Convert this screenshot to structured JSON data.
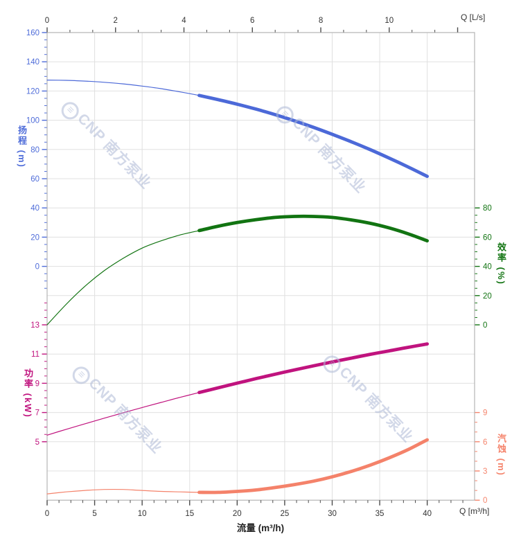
{
  "watermark": {
    "text": "CNP 南方泵业",
    "color": "#aebad6"
  },
  "chart_data": {
    "type": "line",
    "title": "",
    "x_bottom": {
      "axis_label": "流量 (m³/h)",
      "corner_label": "Q [m³/h]",
      "unit": "m³/h",
      "ticks": [
        0,
        5,
        10,
        15,
        20,
        25,
        30,
        35,
        40
      ],
      "minor_step": 1.25,
      "range": [
        0,
        45
      ],
      "grid": true
    },
    "x_top": {
      "corner_label": "Q [L/s]",
      "unit": "L/s",
      "ticks": [
        0,
        2,
        4,
        6,
        8,
        10
      ],
      "extra_unlabeled_ticks": [
        12
      ],
      "minor_step": 0.6666667,
      "range": [
        0,
        12.5
      ]
    },
    "y_axes": {
      "head": {
        "title": "扬程 (m)",
        "unit": "m",
        "side": "left",
        "color": "#4e6cd9",
        "ticks": [
          160,
          140,
          120,
          100,
          80,
          60,
          40,
          20,
          0
        ],
        "minor": {
          "from": -15,
          "to": 155,
          "step": 5
        },
        "range": [
          0,
          160
        ]
      },
      "efficiency": {
        "title": "效率 (%)",
        "unit": "%",
        "side": "right",
        "color": "#127412",
        "ticks": [
          80,
          60,
          40,
          20,
          0
        ],
        "minor": {
          "from": 0,
          "to": 80,
          "step": 5
        },
        "range": [
          0,
          80
        ]
      },
      "power": {
        "title": "功率 (kW)",
        "unit": "kW",
        "side": "left",
        "color": "#c0137e",
        "ticks": [
          13,
          11,
          9,
          7,
          5
        ],
        "minor": {
          "from": 5,
          "to": 14.5,
          "step": 0.5
        },
        "range": [
          5,
          13
        ]
      },
      "npsh": {
        "title": "汽蚀 (m)",
        "unit": "m",
        "side": "right",
        "color": "#f5846c",
        "ticks": [
          9,
          6,
          3,
          0
        ],
        "minor": {
          "from": 0,
          "to": 9,
          "step": 1
        },
        "range": [
          0,
          9
        ]
      }
    },
    "series": [
      {
        "id": "head",
        "label": "扬程",
        "axis": "head",
        "color": "#4c69d8",
        "bold_from_x": 16,
        "x": [
          0,
          2,
          4,
          6,
          8,
          10,
          12,
          14,
          16,
          18,
          20,
          22,
          24,
          26,
          28,
          30,
          32,
          34,
          36,
          38,
          40
        ],
        "values": [
          127.5,
          127.3,
          126.8,
          126.0,
          124.9,
          123.4,
          121.6,
          119.4,
          117.0,
          114.1,
          111.0,
          107.6,
          103.8,
          99.7,
          95.2,
          90.4,
          85.3,
          79.9,
          74.1,
          68.0,
          61.6
        ]
      },
      {
        "id": "efficiency",
        "label": "效率",
        "axis": "efficiency",
        "color": "#127412",
        "bold_from_x": 16,
        "x": [
          0,
          2,
          4,
          6,
          8,
          10,
          12,
          14,
          16,
          18,
          20,
          22,
          24,
          26,
          28,
          30,
          32,
          34,
          36,
          38,
          40
        ],
        "values": [
          0,
          14,
          26.5,
          37,
          45.5,
          52.5,
          57.5,
          61.5,
          64.5,
          67.5,
          70,
          72,
          73.5,
          74.2,
          74.2,
          73.5,
          71.8,
          69.5,
          66.3,
          62.3,
          57.5
        ]
      },
      {
        "id": "power",
        "label": "功率",
        "axis": "power",
        "color": "#c0137e",
        "bold_from_x": 16,
        "x": [
          0,
          2,
          4,
          6,
          8,
          10,
          12,
          14,
          16,
          18,
          20,
          22,
          24,
          26,
          28,
          30,
          32,
          34,
          36,
          38,
          40
        ],
        "values": [
          5.45,
          5.85,
          6.23,
          6.61,
          6.98,
          7.34,
          7.69,
          8.04,
          8.37,
          8.69,
          9.01,
          9.32,
          9.62,
          9.91,
          10.19,
          10.46,
          10.72,
          10.98,
          11.22,
          11.46,
          11.69
        ]
      },
      {
        "id": "npsh",
        "label": "汽蚀",
        "axis": "npsh",
        "color": "#f4826a",
        "bold_from_x": 16,
        "x": [
          0,
          2,
          4,
          6,
          8,
          10,
          12,
          14,
          16,
          18,
          20,
          22,
          24,
          26,
          28,
          30,
          32,
          34,
          36,
          38,
          40
        ],
        "values": [
          0.65,
          0.85,
          1.0,
          1.1,
          1.1,
          1.0,
          0.9,
          0.85,
          0.8,
          0.8,
          0.9,
          1.05,
          1.3,
          1.6,
          1.95,
          2.4,
          2.95,
          3.6,
          4.35,
          5.2,
          6.2
        ]
      }
    ]
  }
}
